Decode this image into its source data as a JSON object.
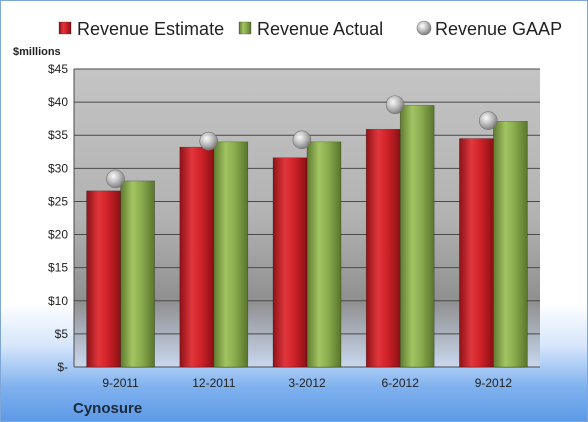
{
  "chart_data": {
    "type": "bar",
    "company": "Cynosure",
    "ylabel": "$millions",
    "categories": [
      "9-2011",
      "12-2011",
      "3-2012",
      "6-2012",
      "9-2012"
    ],
    "series": [
      {
        "name": "Revenue Estimate",
        "kind": "bar",
        "color": "#cc2027",
        "values": [
          26.6,
          33.2,
          31.6,
          35.9,
          34.5
        ]
      },
      {
        "name": "Revenue Actual",
        "kind": "bar",
        "color": "#8cae4f",
        "values": [
          28.1,
          34.0,
          34.0,
          39.5,
          37.1
        ]
      },
      {
        "name": "Revenue GAAP",
        "kind": "marker",
        "color": "#b8b8b8",
        "values": [
          28.4,
          34.1,
          34.3,
          39.6,
          37.2
        ]
      }
    ],
    "ylim": [
      0,
      45
    ],
    "yticks": [
      0,
      5,
      10,
      15,
      20,
      25,
      30,
      35,
      40,
      45
    ],
    "ytick_labels": [
      "$-",
      "$5",
      "$10",
      "$15",
      "$20",
      "$25",
      "$30",
      "$35",
      "$40",
      "$45"
    ],
    "grid": true,
    "legend": "top"
  }
}
